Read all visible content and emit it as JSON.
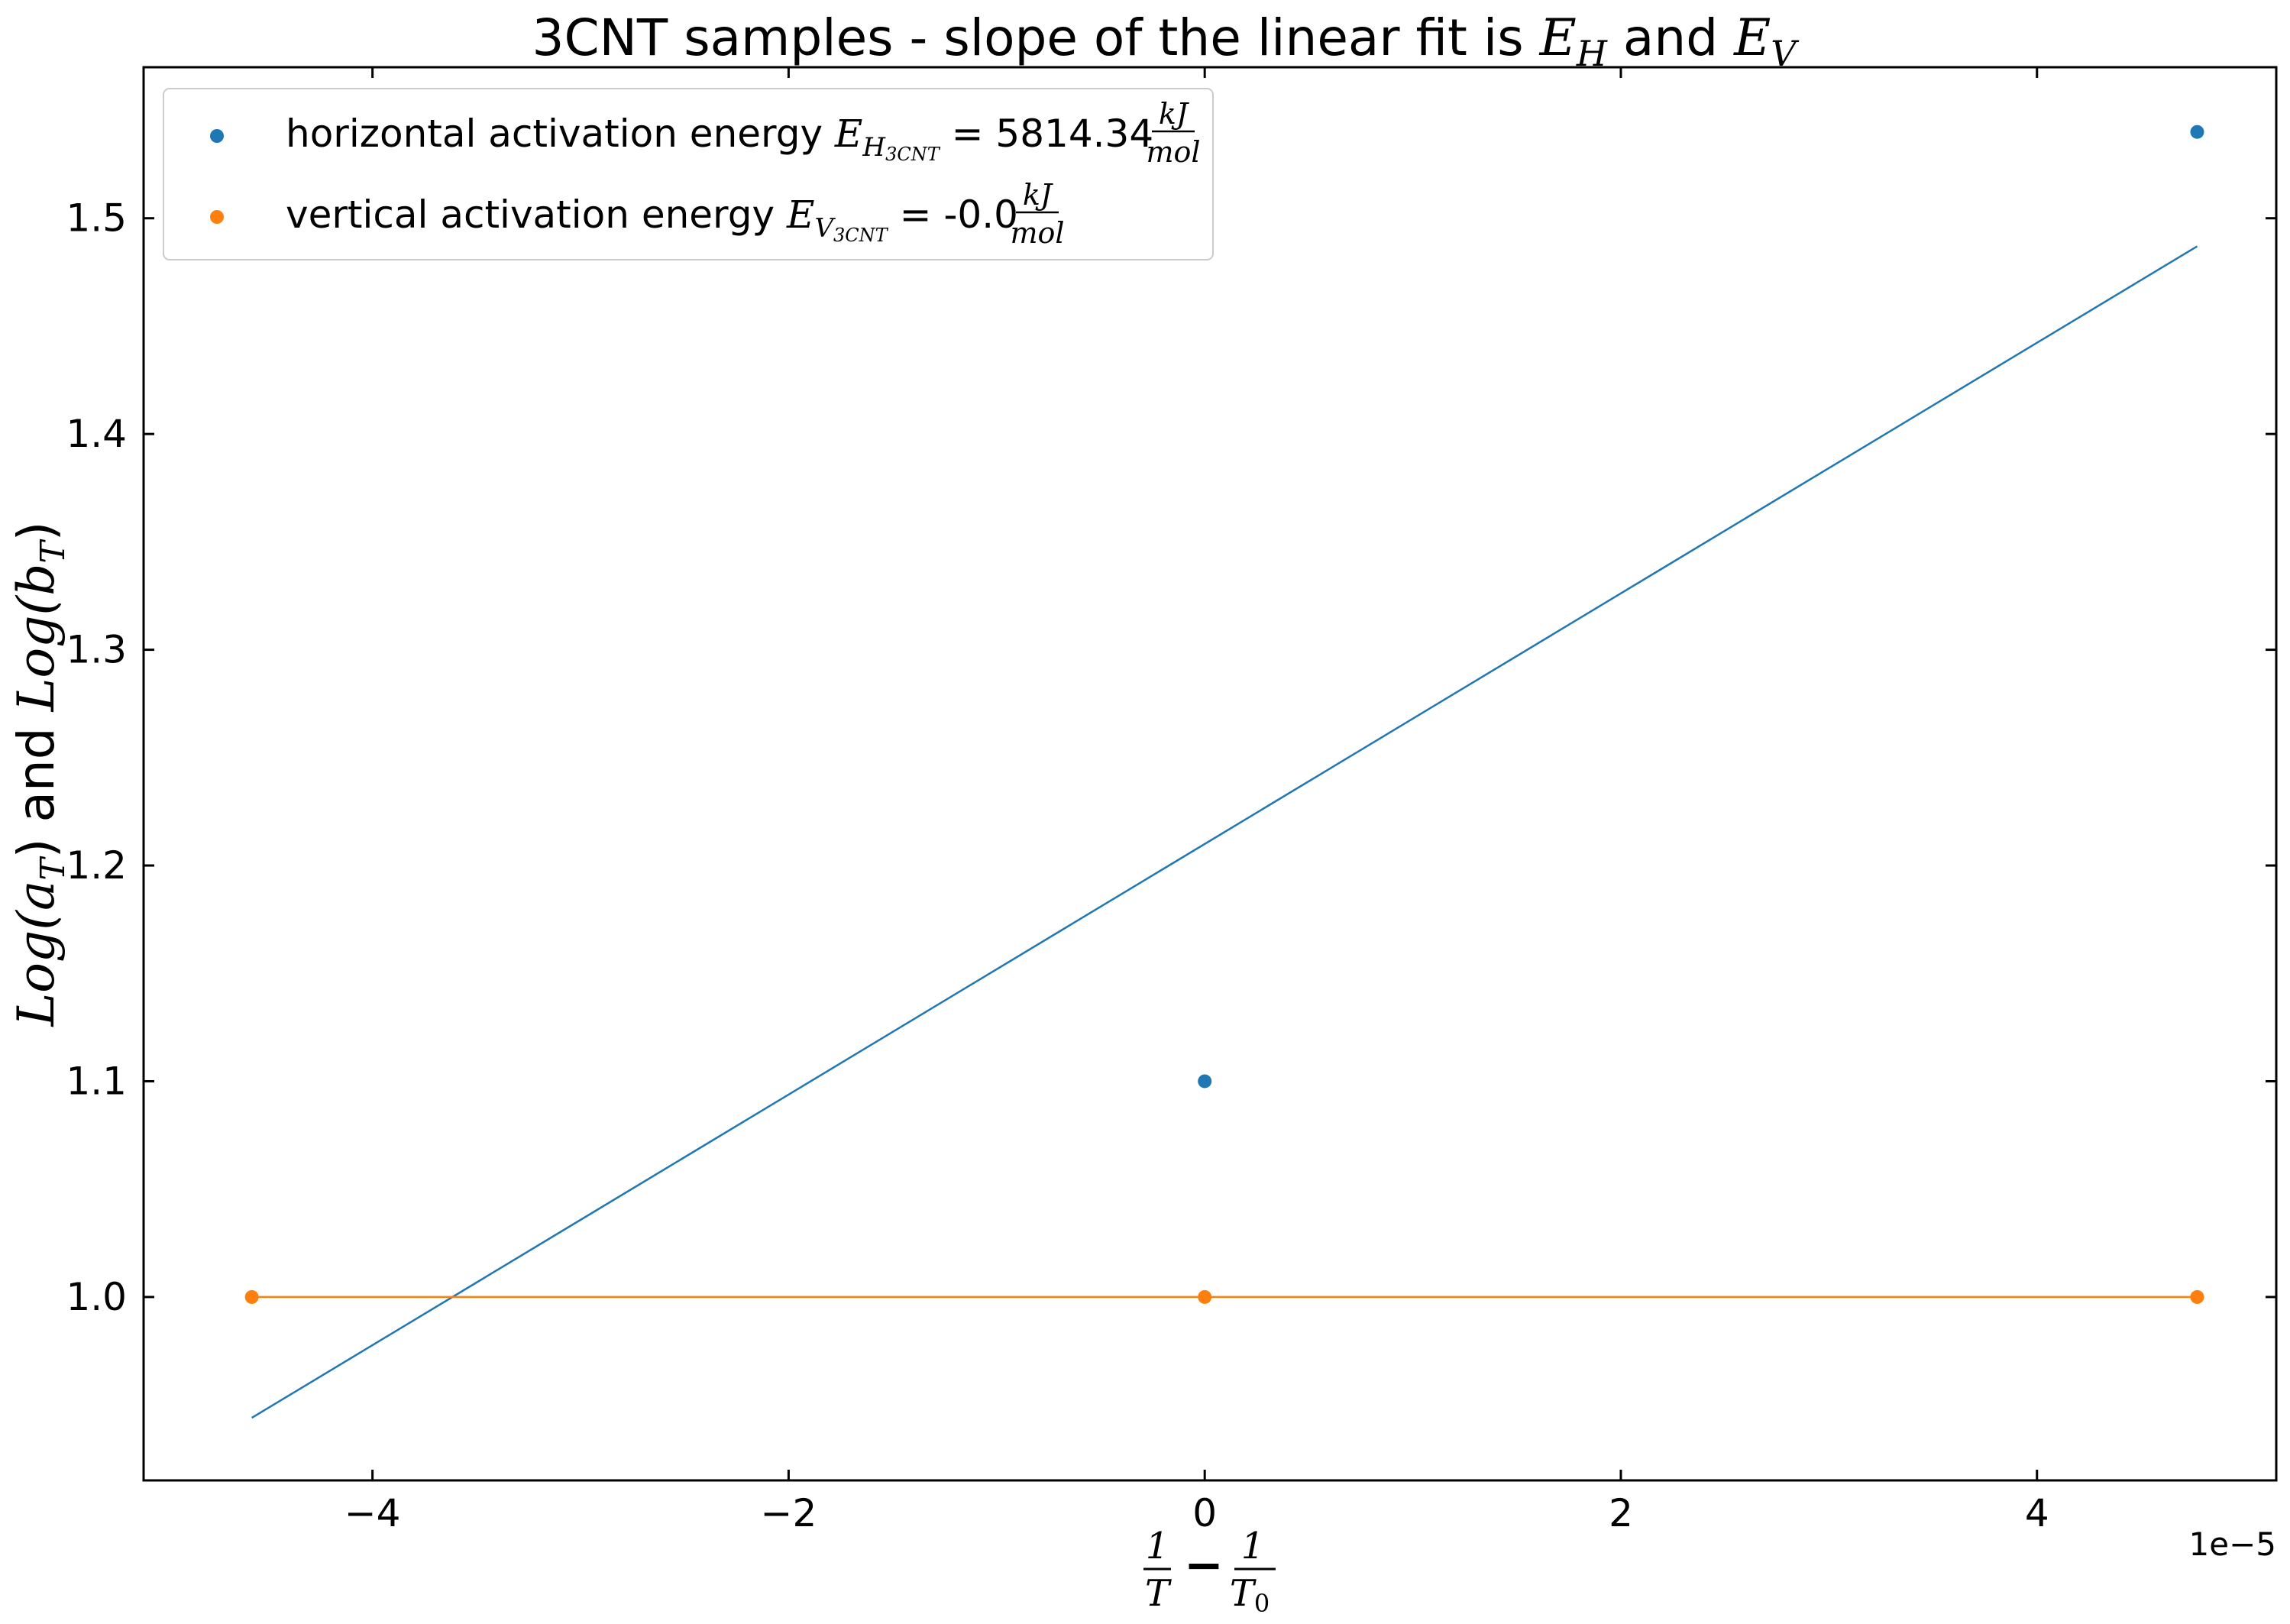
{
  "chart_data": {
    "type": "scatter",
    "title": "3CNT samples - slope of the linear fit is E_H and E_V",
    "title_parts": {
      "prefix": "3CNT samples - slope of the linear fit is ",
      "e1_base": "E",
      "e1_sub": "H",
      "middle": " and ",
      "e2_base": "E",
      "e2_sub": "V"
    },
    "xlabel": "1/T - 1/T_0",
    "xlabel_parts": {
      "num1": "1",
      "den1": "T",
      "op": "−",
      "num2": "1",
      "den2": "T",
      "den2_sub": "0"
    },
    "ylabel": "Log(a_T) and Log(b_T)",
    "ylabel_parts": {
      "a": "Log(a",
      "a_sub": "T",
      "b": ") and ",
      "c": "Log(b",
      "c_sub": "T",
      "d": ")"
    },
    "x_offset_label": "1e−5",
    "xlim": [
      -5.1e-05,
      5.15e-05
    ],
    "ylim": [
      0.915,
      1.57
    ],
    "x_ticks": [
      -4e-05,
      -2e-05,
      0,
      2e-05,
      4e-05
    ],
    "x_tick_labels": [
      "−4",
      "−2",
      "0",
      "2",
      "4"
    ],
    "y_ticks": [
      1.0,
      1.1,
      1.2,
      1.3,
      1.4,
      1.5
    ],
    "y_tick_labels": [
      "1.0",
      "1.1",
      "1.2",
      "1.3",
      "1.4",
      "1.5"
    ],
    "grid": false,
    "legend_position": "upper-left",
    "series": [
      {
        "name": "horizontal activation energy E_H3CNT = 5814.34 kJ/mol",
        "legend_parts": {
          "text": "horizontal activation energy ",
          "sym": "E",
          "sub": "H",
          "subsub": "3CNT",
          "eq": " = 5814.34",
          "num": "kJ",
          "den": "mol"
        },
        "color": "#1f77b4",
        "points": [
          {
            "x": 0.0,
            "y": 1.1
          },
          {
            "x": 4.77e-05,
            "y": 1.54
          }
        ],
        "fit": {
          "x": [
            -4.58e-05,
            4.77e-05
          ],
          "y": [
            0.944,
            1.487
          ]
        }
      },
      {
        "name": "vertical activation energy E_V3CNT = -0.0 kJ/mol",
        "legend_parts": {
          "text": "vertical activation energy ",
          "sym": "E",
          "sub": "V",
          "subsub": "3CNT",
          "eq": " = -0.0",
          "num": "kJ",
          "den": "mol"
        },
        "color": "#ff7f0e",
        "points": [
          {
            "x": -4.58e-05,
            "y": 1.0
          },
          {
            "x": 0.0,
            "y": 1.0
          },
          {
            "x": 4.77e-05,
            "y": 1.0
          }
        ],
        "fit": {
          "x": [
            -4.58e-05,
            4.77e-05
          ],
          "y": [
            1.0,
            1.0
          ]
        }
      }
    ]
  }
}
